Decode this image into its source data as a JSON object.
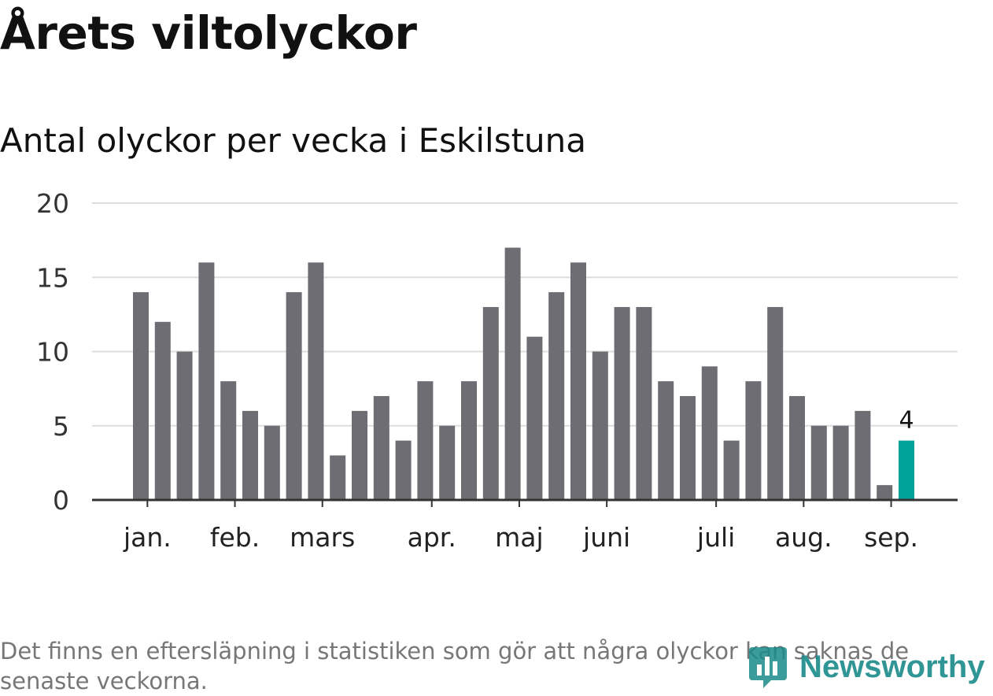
{
  "chart_data": {
    "type": "bar",
    "title": "Årets viltolyckor",
    "subtitle": "Antal olyckor per vecka i Eskilstuna",
    "values": [
      14,
      12,
      10,
      16,
      8,
      6,
      5,
      14,
      16,
      3,
      6,
      7,
      4,
      8,
      5,
      8,
      13,
      17,
      11,
      14,
      16,
      10,
      13,
      13,
      8,
      7,
      9,
      4,
      8,
      13,
      7,
      5,
      5,
      6,
      1,
      4
    ],
    "highlight_index": 35,
    "highlight_label": "4",
    "month_labels": [
      {
        "label": "jan.",
        "week": 0.3
      },
      {
        "label": "feb.",
        "week": 4.3
      },
      {
        "label": "mars",
        "week": 8.3
      },
      {
        "label": "apr.",
        "week": 13.3
      },
      {
        "label": "maj",
        "week": 17.3
      },
      {
        "label": "juni",
        "week": 21.3
      },
      {
        "label": "juli",
        "week": 26.3
      },
      {
        "label": "aug.",
        "week": 30.3
      },
      {
        "label": "sep.",
        "week": 34.3
      }
    ],
    "yticks": [
      0,
      5,
      10,
      15,
      20
    ],
    "ylim": [
      0,
      20
    ],
    "grid": true,
    "colors": {
      "bar": "#6e6d73",
      "highlight": "#00a39a",
      "grid": "#dddddd",
      "axis": "#333333"
    }
  },
  "footer": {
    "note": "Det finns en eftersläpning i statistiken som gör att några olyckor kan saknas de senaste veckorna.",
    "brand": "Newsworthy"
  }
}
